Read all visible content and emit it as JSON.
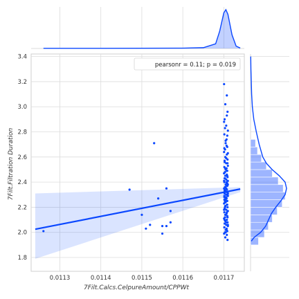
{
  "chart_data": {
    "type": "scatter",
    "subtype": "jointplot-regression",
    "xlabel": "7Filt.Calcs.CelpureAmount/CPPWt",
    "ylabel": "7Filt.Filtration Duration",
    "annotation": "pearsonr = 0.11; p = 0.019",
    "xlim": [
      0.01123,
      0.01175
    ],
    "ylim": [
      1.69,
      3.42
    ],
    "x_ticks": [
      0.0113,
      0.0114,
      0.0115,
      0.0116,
      0.0117
    ],
    "x_tick_labels": [
      "0.0113",
      "0.0114",
      "0.0115",
      "0.0116",
      "0.0117"
    ],
    "y_ticks": [
      1.8,
      2.0,
      2.2,
      2.4,
      2.6,
      2.8,
      3.0,
      3.2,
      3.4
    ],
    "y_tick_labels": [
      "1.8",
      "2.0",
      "2.2",
      "2.4",
      "2.6",
      "2.8",
      "3.0",
      "3.2",
      "3.4"
    ],
    "grid": true,
    "legend_position": "top-right",
    "color": "#0a47ff",
    "regression": {
      "x": [
        0.01124,
        0.01174
      ],
      "y": [
        2.025,
        2.345
      ],
      "ci_upper": [
        2.31,
        2.36
      ],
      "ci_lower": [
        1.79,
        2.32
      ]
    },
    "points": {
      "x": [
        0.01126,
        0.01147,
        0.0115,
        0.01151,
        0.01152,
        0.01153,
        0.01154,
        0.01155,
        0.01155,
        0.01156,
        0.01156,
        0.01157,
        0.01157
      ],
      "y": [
        2.01,
        2.34,
        2.14,
        2.03,
        2.06,
        2.71,
        2.27,
        1.99,
        2.05,
        2.35,
        2.05,
        2.17,
        2.08
      ]
    },
    "cluster_x": 0.011705,
    "cluster_y": [
      3.18,
      3.09,
      3.02,
      2.96,
      2.9,
      2.85,
      2.81,
      2.78,
      2.74,
      2.71,
      2.68,
      2.66,
      2.64,
      2.62,
      2.6,
      2.58,
      2.56,
      2.55,
      2.53,
      2.52,
      2.51,
      2.5,
      2.49,
      2.48,
      2.47,
      2.46,
      2.45,
      2.44,
      2.43,
      2.42,
      2.41,
      2.4,
      2.39,
      2.38,
      2.37,
      2.36,
      2.35,
      2.34,
      2.33,
      2.32,
      2.31,
      2.3,
      2.29,
      2.28,
      2.27,
      2.26,
      2.25,
      2.24,
      2.23,
      2.22,
      2.21,
      2.2,
      2.19,
      2.18,
      2.17,
      2.16,
      2.15,
      2.14,
      2.13,
      2.12,
      2.11,
      2.1,
      2.09,
      2.08,
      2.07,
      2.06,
      2.05,
      2.04,
      2.03,
      2.02,
      2.01,
      2.0,
      1.99,
      1.98,
      1.96,
      1.94,
      2.33,
      2.35,
      2.31,
      2.29,
      2.37,
      2.27,
      2.39,
      2.25,
      2.41,
      2.32,
      2.36,
      2.3,
      2.34,
      2.28,
      2.38,
      2.26,
      2.4,
      2.24,
      2.22,
      2.2,
      2.18,
      2.16,
      2.14,
      2.12,
      2.1,
      2.08,
      2.06,
      2.04,
      2.02,
      2.0,
      2.45,
      2.43,
      2.47,
      2.49,
      2.51,
      2.55,
      2.57,
      2.59,
      2.63,
      2.67,
      2.69,
      2.73,
      2.77,
      2.83,
      2.88,
      2.93
    ],
    "hist_y": {
      "bins": [
        1.9,
        1.96,
        2.02,
        2.08,
        2.14,
        2.2,
        2.26,
        2.32,
        2.38,
        2.44,
        2.5,
        2.56,
        2.62,
        2.68,
        2.74
      ],
      "counts": [
        8,
        14,
        18,
        22,
        27,
        32,
        35,
        33,
        28,
        22,
        16,
        11,
        7,
        5
      ]
    },
    "kde_x": {
      "x": [
        0.01126,
        0.0114,
        0.0115,
        0.0116,
        0.01165,
        0.01168,
        0.01169,
        0.0117,
        0.011705,
        0.01171,
        0.01172,
        0.01173,
        0.01174
      ],
      "density": [
        0.004,
        0.004,
        0.006,
        0.008,
        0.02,
        0.12,
        0.45,
        0.92,
        1.0,
        0.88,
        0.35,
        0.06,
        0.01
      ]
    },
    "kde_y": {
      "y": [
        1.93,
        1.96,
        2.0,
        2.05,
        2.1,
        2.15,
        2.2,
        2.25,
        2.3,
        2.35,
        2.4,
        2.45,
        2.5,
        2.55,
        2.6,
        2.7,
        2.8,
        2.9,
        3.0,
        3.1,
        3.2,
        3.3,
        3.4
      ],
      "density": [
        0.02,
        0.1,
        0.28,
        0.42,
        0.5,
        0.58,
        0.7,
        0.84,
        0.96,
        1.0,
        0.96,
        0.8,
        0.6,
        0.44,
        0.34,
        0.24,
        0.16,
        0.09,
        0.05,
        0.03,
        0.02,
        0.01,
        0.005
      ]
    }
  }
}
